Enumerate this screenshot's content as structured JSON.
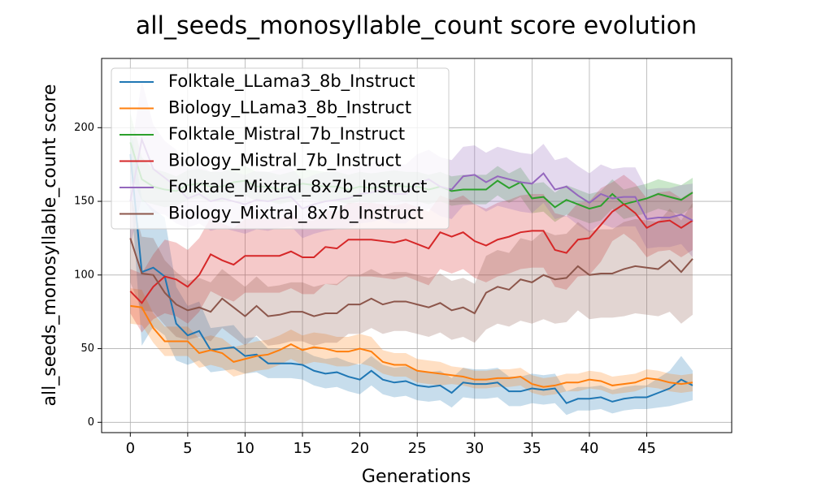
{
  "chart_data": {
    "type": "line",
    "title": "all_seeds_monosyllable_count score evolution",
    "x_label": "Generations",
    "y_label": "all_seeds_monosyllable_count score",
    "x": [
      0,
      1,
      2,
      3,
      4,
      5,
      6,
      7,
      8,
      9,
      10,
      11,
      12,
      13,
      14,
      15,
      16,
      17,
      18,
      19,
      20,
      21,
      22,
      23,
      24,
      25,
      26,
      27,
      28,
      29,
      30,
      31,
      32,
      33,
      34,
      35,
      36,
      37,
      38,
      39,
      40,
      41,
      42,
      43,
      44,
      45,
      46,
      47,
      48,
      49
    ],
    "xlim": [
      -2.5,
      52.4
    ],
    "xticks": [
      0,
      5,
      10,
      15,
      20,
      25,
      30,
      35,
      40,
      45
    ],
    "ylim": [
      -7,
      247
    ],
    "yticks": [
      0,
      50,
      100,
      150,
      200
    ],
    "grid": true,
    "legend": "upper left",
    "series": [
      {
        "name": "Folktale_LLama3_8b_Instruct",
        "color": "#1f77b4",
        "values": [
          182,
          102,
          105,
          99,
          67,
          59,
          62,
          49,
          50,
          51,
          45,
          46,
          40,
          40,
          40,
          39,
          35,
          33,
          34,
          31,
          29,
          35,
          29,
          27,
          28,
          25,
          24,
          25,
          20,
          27,
          26,
          26,
          27,
          21,
          21,
          23,
          22,
          23,
          13,
          16,
          16,
          17,
          14,
          16,
          17,
          17,
          20,
          23,
          29,
          25
        ],
        "errors": [
          20,
          50,
          40,
          40,
          25,
          20,
          20,
          15,
          15,
          15,
          12,
          12,
          10,
          10,
          10,
          10,
          10,
          10,
          10,
          10,
          10,
          10,
          10,
          10,
          10,
          10,
          10,
          10,
          10,
          10,
          10,
          10,
          10,
          10,
          10,
          10,
          10,
          10,
          8,
          8,
          8,
          8,
          8,
          8,
          8,
          8,
          10,
          12,
          16,
          10
        ]
      },
      {
        "name": "Biology_LLama3_8b_Instruct",
        "color": "#ff7f0e",
        "values": [
          79,
          78,
          64,
          55,
          55,
          55,
          47,
          49,
          47,
          41,
          43,
          45,
          46,
          49,
          53,
          49,
          51,
          50,
          48,
          48,
          50,
          48,
          41,
          39,
          39,
          35,
          34,
          33,
          32,
          31,
          29,
          29,
          30,
          30,
          31,
          26,
          24,
          25,
          27,
          27,
          29,
          28,
          25,
          26,
          27,
          30,
          29,
          27,
          26,
          27
        ],
        "errors": [
          12,
          12,
          10,
          10,
          10,
          10,
          10,
          10,
          10,
          10,
          10,
          10,
          10,
          10,
          10,
          10,
          10,
          10,
          10,
          10,
          10,
          10,
          8,
          8,
          8,
          8,
          8,
          8,
          6,
          6,
          6,
          6,
          6,
          6,
          6,
          6,
          6,
          6,
          6,
          6,
          6,
          6,
          6,
          6,
          6,
          6,
          6,
          6,
          6,
          6
        ]
      },
      {
        "name": "Folktale_Mistral_7b_Instruct",
        "color": "#2ca02c",
        "values": [
          190,
          165,
          160,
          158,
          157,
          161,
          162,
          160,
          160,
          163,
          164,
          160,
          160,
          158,
          160,
          162,
          161,
          160,
          160,
          158,
          160,
          159,
          160,
          161,
          160,
          160,
          158,
          160,
          157,
          158,
          158,
          158,
          164,
          159,
          163,
          152,
          153,
          146,
          151,
          148,
          145,
          147,
          155,
          148,
          150,
          152,
          155,
          153,
          151,
          156
        ],
        "errors": [
          20,
          15,
          12,
          12,
          10,
          10,
          10,
          10,
          10,
          10,
          10,
          10,
          10,
          10,
          10,
          10,
          10,
          10,
          10,
          10,
          10,
          10,
          10,
          10,
          10,
          10,
          10,
          10,
          10,
          10,
          10,
          10,
          10,
          10,
          10,
          10,
          10,
          10,
          10,
          10,
          10,
          10,
          10,
          10,
          10,
          10,
          10,
          10,
          10,
          10
        ]
      },
      {
        "name": "Biology_Mistral_7b_Instruct",
        "color": "#d62728",
        "values": [
          89,
          81,
          92,
          99,
          97,
          92,
          100,
          114,
          110,
          107,
          113,
          113,
          113,
          113,
          116,
          112,
          112,
          119,
          118,
          124,
          124,
          124,
          123,
          122,
          124,
          121,
          118,
          129,
          126,
          129,
          123,
          120,
          124,
          126,
          129,
          130,
          130,
          117,
          115,
          124,
          125,
          134,
          143,
          148,
          142,
          132,
          136,
          137,
          132,
          137
        ],
        "errors": [
          15,
          20,
          22,
          25,
          25,
          25,
          25,
          25,
          25,
          25,
          25,
          25,
          25,
          25,
          25,
          25,
          25,
          25,
          25,
          25,
          25,
          25,
          25,
          25,
          25,
          25,
          25,
          25,
          25,
          25,
          25,
          25,
          25,
          25,
          25,
          25,
          25,
          25,
          25,
          25,
          25,
          25,
          20,
          20,
          20,
          20,
          20,
          20,
          20,
          20
        ]
      },
      {
        "name": "Folktale_Mixtral_8x7b_Instruct",
        "color": "#9467bd",
        "values": [
          150,
          192,
          172,
          166,
          160,
          152,
          155,
          150,
          152,
          150,
          148,
          151,
          150,
          152,
          153,
          145,
          148,
          150,
          151,
          152,
          155,
          156,
          158,
          155,
          155,
          162,
          165,
          160,
          158,
          167,
          168,
          163,
          167,
          165,
          163,
          162,
          169,
          158,
          160,
          154,
          149,
          155,
          152,
          153,
          153,
          138,
          139,
          139,
          141,
          137
        ],
        "errors": [
          30,
          40,
          30,
          25,
          25,
          20,
          20,
          20,
          20,
          20,
          20,
          20,
          20,
          20,
          20,
          20,
          20,
          20,
          20,
          20,
          20,
          20,
          20,
          20,
          20,
          20,
          20,
          20,
          20,
          20,
          20,
          20,
          20,
          20,
          20,
          20,
          20,
          20,
          20,
          20,
          20,
          20,
          20,
          20,
          20,
          20,
          20,
          20,
          20,
          25
        ]
      },
      {
        "name": "Biology_Mixtral_8x7b_Instruct",
        "color": "#8c564b",
        "values": [
          125,
          101,
          100,
          88,
          80,
          76,
          78,
          75,
          84,
          78,
          72,
          79,
          72,
          73,
          75,
          75,
          72,
          74,
          74,
          80,
          80,
          84,
          80,
          82,
          82,
          80,
          78,
          81,
          76,
          78,
          74,
          88,
          92,
          90,
          97,
          95,
          100,
          97,
          98,
          106,
          100,
          101,
          101,
          104,
          106,
          105,
          104,
          110,
          102,
          111
        ],
        "errors": [
          30,
          25,
          25,
          22,
          22,
          20,
          20,
          20,
          20,
          20,
          20,
          20,
          20,
          20,
          20,
          20,
          20,
          20,
          20,
          20,
          20,
          20,
          20,
          20,
          20,
          20,
          20,
          20,
          20,
          20,
          20,
          25,
          25,
          25,
          28,
          28,
          30,
          30,
          30,
          30,
          30,
          30,
          30,
          32,
          32,
          32,
          32,
          35,
          35,
          38
        ]
      }
    ]
  }
}
